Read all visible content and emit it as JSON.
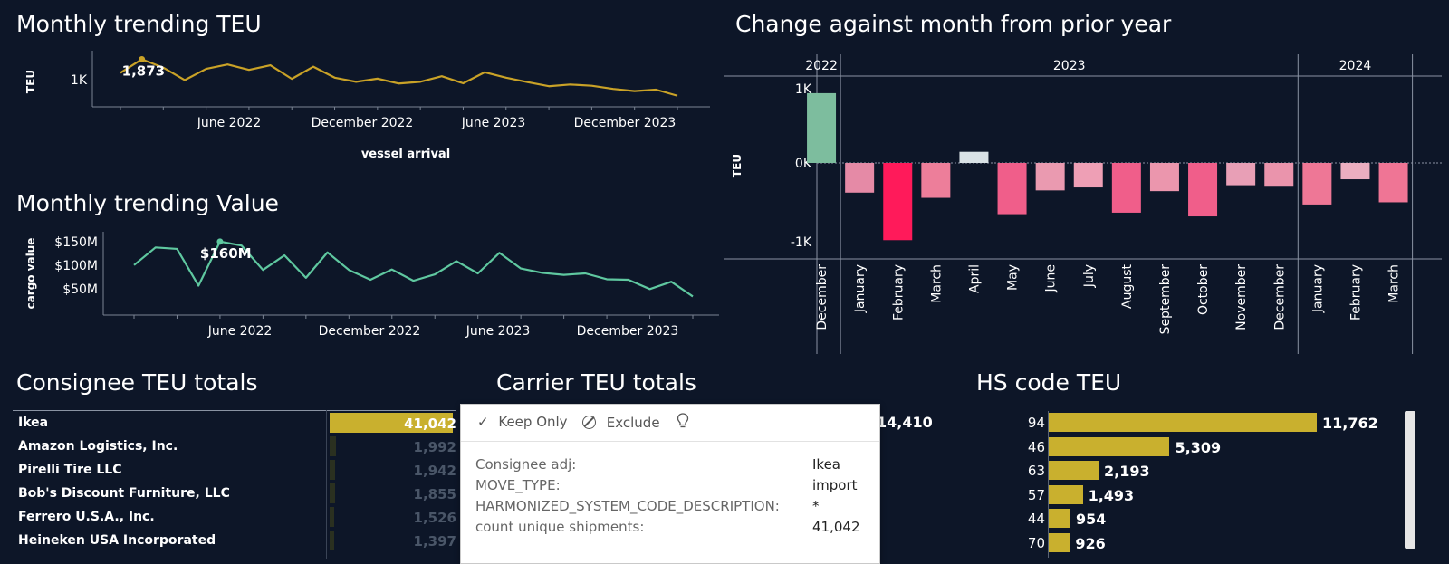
{
  "titles": {
    "teu_trend": "Monthly trending TEU",
    "value_trend": "Monthly trending Value",
    "change": "Change against month from prior year",
    "consignee": "Consignee TEU totals",
    "carrier": "Carrier TEU totals",
    "hs": "HS code TEU"
  },
  "chart_data": [
    {
      "type": "line",
      "title": "Monthly trending TEU",
      "ylabel": "TEU",
      "xlabel": "vessel arrival",
      "y_ticks": [
        "1K"
      ],
      "x_ticks": [
        "June 2022",
        "December 2022",
        "June 2023",
        "December 2023"
      ],
      "color": "#c9a227",
      "highlight_label": "1,873",
      "highlight_index": 1,
      "values": [
        1320,
        1873,
        1530,
        1020,
        1480,
        1660,
        1440,
        1630,
        1070,
        1570,
        1120,
        950,
        1080,
        880,
        950,
        1180,
        890,
        1340,
        1120,
        940,
        770,
        840,
        790,
        660,
        570,
        630,
        380
      ]
    },
    {
      "type": "line",
      "title": "Monthly trending Value",
      "ylabel": "cargo value",
      "y_ticks": [
        "$150M",
        "$100M",
        "$50M"
      ],
      "x_ticks": [
        "June 2022",
        "December 2022",
        "June 2023",
        "December 2023"
      ],
      "color": "#5fc8a0",
      "highlight_label": "$160M",
      "highlight_index": 4,
      "values": [
        112,
        148,
        145,
        70,
        160,
        152,
        102,
        132,
        86,
        138,
        102,
        82,
        103,
        80,
        93,
        120,
        95,
        137,
        105,
        96,
        92,
        95,
        83,
        82,
        63,
        78,
        48
      ]
    },
    {
      "type": "bar",
      "title": "Change against month from prior year",
      "ylabel": "TEU",
      "y_ticks": [
        "1K",
        "0K",
        "-1K"
      ],
      "ylim": [
        -1150,
        1150
      ],
      "year_groups": [
        {
          "label": "2022",
          "count": 1
        },
        {
          "label": "2023",
          "count": 12
        },
        {
          "label": "2024",
          "count": 3
        }
      ],
      "categories": [
        "December",
        "January",
        "February",
        "March",
        "April",
        "May",
        "June",
        "July",
        "August",
        "September",
        "October",
        "November",
        "December",
        "January",
        "February",
        "March"
      ],
      "values": [
        940,
        -400,
        -1040,
        -470,
        150,
        -690,
        -370,
        -330,
        -670,
        -380,
        -720,
        -300,
        -320,
        -560,
        -220,
        -530
      ],
      "colors": [
        "#7dbd9e",
        "#e58aa6",
        "#ff1a5a",
        "#ed7e9a",
        "#d9e2e6",
        "#f05e8a",
        "#ea9ab0",
        "#ee9fb5",
        "#f05e8a",
        "#eb96ad",
        "#f05e8a",
        "#e89fb6",
        "#ea94ac",
        "#ee7796",
        "#ebaec0",
        "#ef7595"
      ]
    }
  ],
  "consignee": {
    "rows": [
      {
        "name": "Ikea",
        "value": "41,042",
        "fraction": 1.0
      },
      {
        "name": "Amazon Logistics, Inc.",
        "value": "1,992",
        "fraction": 0.049
      },
      {
        "name": "Pirelli Tire LLC",
        "value": "1,942",
        "fraction": 0.047
      },
      {
        "name": "Bob's Discount Furniture, LLC",
        "value": "1,855",
        "fraction": 0.045
      },
      {
        "name": "Ferrero U.S.A., Inc.",
        "value": "1,526",
        "fraction": 0.037
      },
      {
        "name": "Heineken USA Incorporated",
        "value": "1,397",
        "fraction": 0.034
      }
    ]
  },
  "carrier": {
    "partial_value": "14,410"
  },
  "tooltip": {
    "keep_only": "Keep Only",
    "exclude": "Exclude",
    "rows": [
      {
        "label": "Consignee adj:",
        "value": "Ikea"
      },
      {
        "label": "MOVE_TYPE:",
        "value": "import"
      },
      {
        "label": "HARMONIZED_SYSTEM_CODE_DESCRIPTION:",
        "value": "*"
      },
      {
        "label": "count unique shipments:",
        "value": "41,042"
      }
    ]
  },
  "hs": {
    "rows": [
      {
        "code": "94",
        "value": "11,762",
        "fraction": 1.0
      },
      {
        "code": "46",
        "value": "5,309",
        "fraction": 0.451
      },
      {
        "code": "63",
        "value": "2,193",
        "fraction": 0.186
      },
      {
        "code": "57",
        "value": "1,493",
        "fraction": 0.127
      },
      {
        "code": "44",
        "value": "954",
        "fraction": 0.081
      },
      {
        "code": "70",
        "value": "926",
        "fraction": 0.079
      }
    ]
  }
}
